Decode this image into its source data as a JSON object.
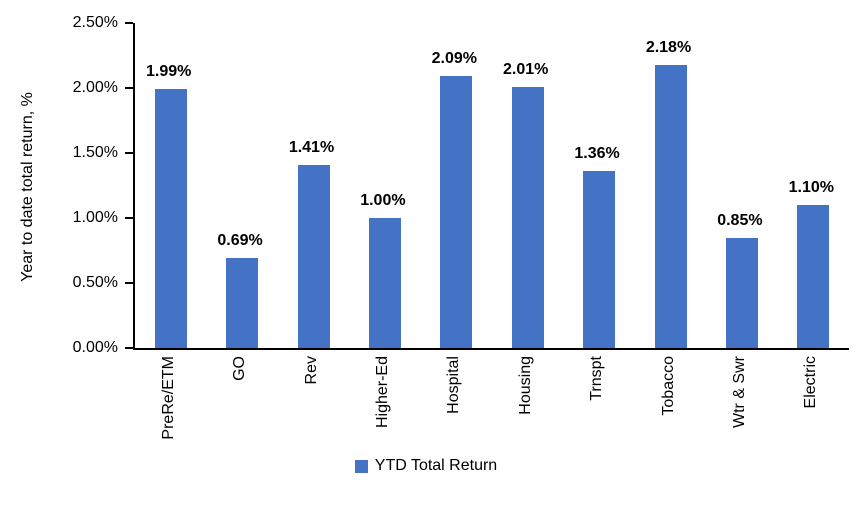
{
  "chart_data": {
    "type": "bar",
    "title": "",
    "categories": [
      "PreRe/ETM",
      "GO",
      "Rev",
      "Higher-Ed",
      "Hospital",
      "Housing",
      "Trnspt",
      "Tobacco",
      "Wtr & Swr",
      "Electric"
    ],
    "series": [
      {
        "name": "YTD Total Return",
        "values": [
          1.99,
          0.69,
          1.41,
          1.0,
          2.09,
          2.01,
          1.36,
          2.18,
          0.85,
          1.1
        ],
        "value_labels": [
          "1.99%",
          "0.69%",
          "1.41%",
          "1.00%",
          "2.09%",
          "2.01%",
          "1.36%",
          "2.18%",
          "0.85%",
          "1.10%"
        ],
        "color": "#4472C4"
      }
    ],
    "xlabel": "",
    "ylabel": "Year to date total return, %",
    "ylim": [
      0,
      2.5
    ],
    "ytick_values": [
      0.0,
      0.5,
      1.0,
      1.5,
      2.0,
      2.5
    ],
    "ytick_labels": [
      "0.00%",
      "0.50%",
      "1.00%",
      "1.50%",
      "2.00%",
      "2.50%"
    ],
    "grid": "off",
    "legend_position": "bottom",
    "axis_color": "#000000",
    "background_color": "#FFFFFF"
  },
  "legend": {
    "label": "YTD Total Return",
    "swatch_color": "#4472C4"
  }
}
